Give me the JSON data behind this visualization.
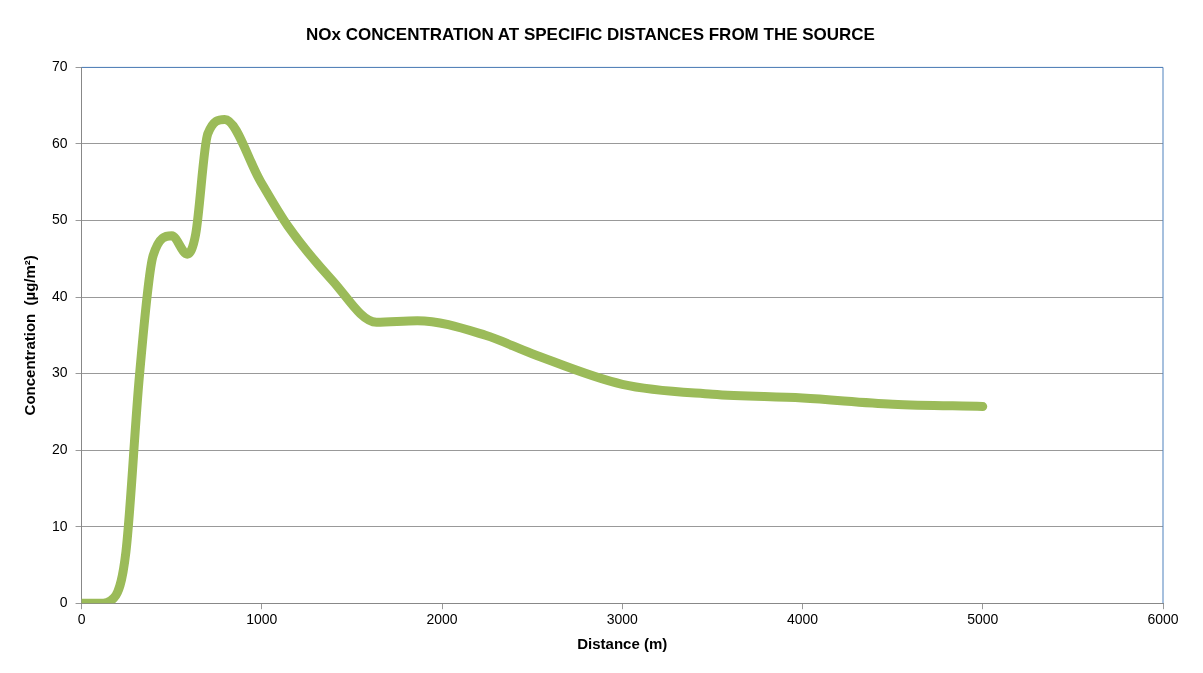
{
  "chart_data": {
    "type": "line",
    "title": "NOx CONCENTRATION AT SPECIFIC DISTANCES FROM THE SOURCE",
    "xlabel": "Distance (m)",
    "ylabel": "Concentration  (µg/m²)",
    "x": [
      0,
      100,
      180,
      246,
      321,
      397,
      501,
      586,
      633,
      700,
      794,
      993,
      1144,
      1390,
      1636,
      1863,
      2241,
      2500,
      3000,
      3500,
      4000,
      4500,
      5000
    ],
    "series": [
      {
        "color": "#9bbb59",
        "values": [
          0,
          0,
          0.7,
          6.7,
          29.7,
          45.4,
          48,
          45.6,
          48.2,
          61.3,
          63.2,
          55.1,
          49.3,
          42.2,
          36.7,
          36.9,
          35,
          32.6,
          28.6,
          27.3,
          26.8,
          26,
          25.7
        ]
      }
    ],
    "xlim": [
      0,
      6000
    ],
    "xticks": [
      0,
      1000,
      2000,
      3000,
      4000,
      5000,
      6000
    ],
    "ylim": [
      0,
      70
    ],
    "yticks": [
      0,
      10,
      20,
      30,
      40,
      50,
      60,
      70
    ],
    "grid": "y",
    "legend": false,
    "marker": "none",
    "line_style": "solid"
  }
}
